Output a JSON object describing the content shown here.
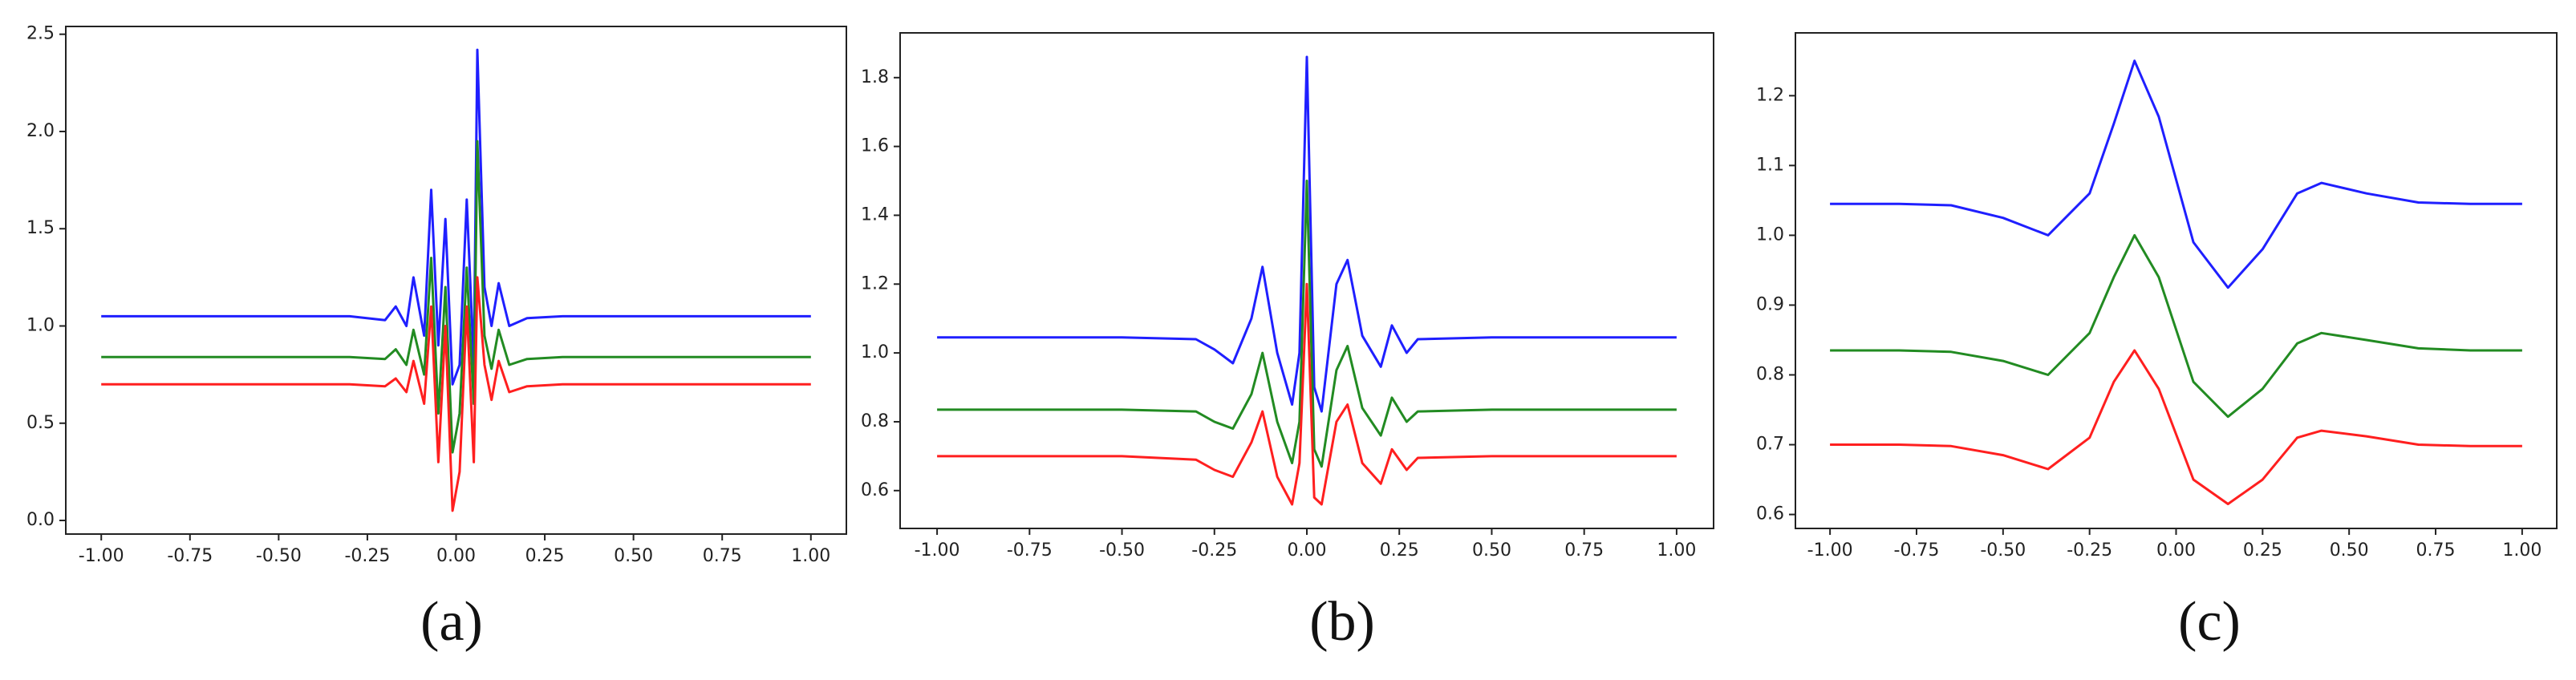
{
  "chart_data": [
    {
      "type": "line",
      "caption": "(a)",
      "x": [
        -1,
        -0.3,
        -0.2,
        -0.17,
        -0.14,
        -0.12,
        -0.09,
        -0.07,
        -0.05,
        -0.03,
        -0.01,
        0.01,
        0.03,
        0.05,
        0.06,
        0.08,
        0.1,
        0.12,
        0.15,
        0.2,
        0.3,
        1
      ],
      "series": [
        {
          "color": "#1f1fff",
          "values": [
            1.05,
            1.05,
            1.03,
            1.1,
            1.0,
            1.25,
            0.95,
            1.7,
            0.9,
            1.55,
            0.7,
            0.8,
            1.65,
            0.8,
            2.42,
            1.2,
            1.0,
            1.22,
            1.0,
            1.04,
            1.05,
            1.05
          ]
        },
        {
          "color": "#228b22",
          "values": [
            0.84,
            0.84,
            0.83,
            0.88,
            0.8,
            0.98,
            0.75,
            1.35,
            0.55,
            1.2,
            0.35,
            0.55,
            1.3,
            0.6,
            1.95,
            0.95,
            0.78,
            0.98,
            0.8,
            0.83,
            0.84,
            0.84
          ]
        },
        {
          "color": "#ff1f1f",
          "values": [
            0.7,
            0.7,
            0.69,
            0.73,
            0.66,
            0.82,
            0.6,
            1.1,
            0.3,
            1.0,
            0.05,
            0.25,
            1.1,
            0.3,
            1.25,
            0.8,
            0.62,
            0.82,
            0.66,
            0.69,
            0.7,
            0.7
          ]
        }
      ],
      "xlim": [
        -1.1,
        1.1
      ],
      "ylim": [
        -0.07,
        2.54
      ],
      "xticks": [
        {
          "value": -1,
          "label": "-1.00"
        },
        {
          "value": -0.75,
          "label": "-0.75"
        },
        {
          "value": -0.5,
          "label": "-0.50"
        },
        {
          "value": -0.25,
          "label": "-0.25"
        },
        {
          "value": 0,
          "label": "0.00"
        },
        {
          "value": 0.25,
          "label": "0.25"
        },
        {
          "value": 0.5,
          "label": "0.50"
        },
        {
          "value": 0.75,
          "label": "0.75"
        },
        {
          "value": 1,
          "label": "1.00"
        }
      ],
      "yticks": [
        {
          "value": 0,
          "label": "0.0"
        },
        0.5,
        {
          "value": 1,
          "label": "1.0"
        },
        1.5,
        {
          "value": 2,
          "label": "2.0"
        },
        2.5
      ]
    },
    {
      "type": "line",
      "caption": "(b)",
      "x": [
        -1,
        -0.5,
        -0.3,
        -0.25,
        -0.2,
        -0.15,
        -0.12,
        -0.08,
        -0.04,
        -0.02,
        0,
        0.02,
        0.04,
        0.08,
        0.11,
        0.15,
        0.2,
        0.23,
        0.27,
        0.3,
        0.5,
        1
      ],
      "series": [
        {
          "color": "#1f1fff",
          "values": [
            1.045,
            1.045,
            1.04,
            1.01,
            0.97,
            1.1,
            1.25,
            1.0,
            0.85,
            1.0,
            1.86,
            0.9,
            0.83,
            1.2,
            1.27,
            1.05,
            0.96,
            1.08,
            1.0,
            1.04,
            1.045,
            1.045
          ]
        },
        {
          "color": "#228b22",
          "values": [
            0.835,
            0.835,
            0.83,
            0.8,
            0.78,
            0.88,
            1.0,
            0.8,
            0.68,
            0.8,
            1.5,
            0.72,
            0.67,
            0.95,
            1.02,
            0.84,
            0.76,
            0.87,
            0.8,
            0.83,
            0.835,
            0.835
          ]
        },
        {
          "color": "#ff1f1f",
          "values": [
            0.7,
            0.7,
            0.69,
            0.66,
            0.64,
            0.74,
            0.83,
            0.64,
            0.56,
            0.68,
            1.2,
            0.58,
            0.56,
            0.8,
            0.85,
            0.68,
            0.62,
            0.72,
            0.66,
            0.695,
            0.7,
            0.7
          ]
        }
      ],
      "xlim": [
        -1.1,
        1.1
      ],
      "ylim": [
        0.49,
        1.93
      ],
      "xticks": [
        {
          "value": -1,
          "label": "-1.00"
        },
        {
          "value": -0.75,
          "label": "-0.75"
        },
        {
          "value": -0.5,
          "label": "-0.50"
        },
        {
          "value": -0.25,
          "label": "-0.25"
        },
        {
          "value": 0,
          "label": "0.00"
        },
        {
          "value": 0.25,
          "label": "0.25"
        },
        {
          "value": 0.5,
          "label": "0.50"
        },
        {
          "value": 0.75,
          "label": "0.75"
        },
        {
          "value": 1,
          "label": "1.00"
        }
      ],
      "yticks": [
        0.6,
        0.8,
        {
          "value": 1,
          "label": "1.0"
        },
        1.2,
        1.4,
        1.6,
        1.8
      ]
    },
    {
      "type": "line",
      "caption": "(c)",
      "x": [
        -1,
        -0.8,
        -0.65,
        -0.5,
        -0.37,
        -0.25,
        -0.18,
        -0.12,
        -0.05,
        0.05,
        0.15,
        0.25,
        0.35,
        0.42,
        0.55,
        0.7,
        0.85,
        1
      ],
      "series": [
        {
          "color": "#1f1fff",
          "values": [
            1.045,
            1.045,
            1.043,
            1.025,
            1.0,
            1.06,
            1.16,
            1.25,
            1.17,
            0.99,
            0.925,
            0.98,
            1.06,
            1.075,
            1.06,
            1.047,
            1.045,
            1.045
          ]
        },
        {
          "color": "#228b22",
          "values": [
            0.835,
            0.835,
            0.833,
            0.82,
            0.8,
            0.86,
            0.94,
            1.0,
            0.94,
            0.79,
            0.74,
            0.78,
            0.845,
            0.86,
            0.85,
            0.838,
            0.835,
            0.835
          ]
        },
        {
          "color": "#ff1f1f",
          "values": [
            0.7,
            0.7,
            0.698,
            0.685,
            0.665,
            0.71,
            0.79,
            0.835,
            0.78,
            0.65,
            0.615,
            0.65,
            0.71,
            0.72,
            0.712,
            0.7,
            0.698,
            0.698
          ]
        }
      ],
      "xlim": [
        -1.1,
        1.1
      ],
      "ylim": [
        0.58,
        1.29
      ],
      "xticks": [
        {
          "value": -1,
          "label": "-1.00"
        },
        {
          "value": -0.75,
          "label": "-0.75"
        },
        {
          "value": -0.5,
          "label": "-0.50"
        },
        {
          "value": -0.25,
          "label": "-0.25"
        },
        {
          "value": 0,
          "label": "0.00"
        },
        {
          "value": 0.25,
          "label": "0.25"
        },
        {
          "value": 0.5,
          "label": "0.50"
        },
        {
          "value": 0.75,
          "label": "0.75"
        },
        {
          "value": 1,
          "label": "1.00"
        }
      ],
      "yticks": [
        0.6,
        0.7,
        0.8,
        0.9,
        {
          "value": 1,
          "label": "1.0"
        },
        1.1,
        1.2
      ]
    }
  ]
}
